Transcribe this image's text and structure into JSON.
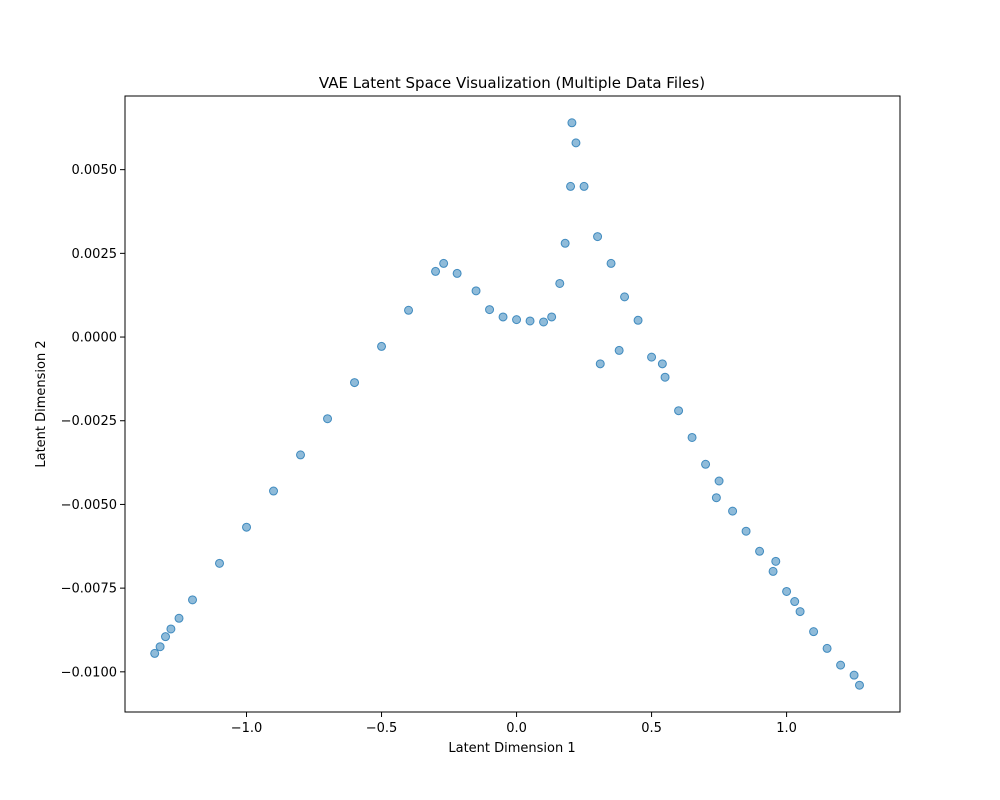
{
  "chart_data": {
    "type": "scatter",
    "title": "VAE Latent Space Visualization (Multiple Data Files)",
    "xlabel": "Latent Dimension 1",
    "ylabel": "Latent Dimension 2",
    "xlim": [
      -1.45,
      1.42
    ],
    "ylim": [
      -0.0112,
      0.0072
    ],
    "xticks": [
      -1.0,
      -0.5,
      0.0,
      0.5,
      1.0
    ],
    "xtick_labels": [
      "−1.0",
      "−0.5",
      "0.0",
      "0.5",
      "1.0"
    ],
    "yticks": [
      0.005,
      0.0025,
      0.0,
      -0.0025,
      -0.005,
      -0.0075,
      -0.01
    ],
    "ytick_labels": [
      "0.0050",
      "0.0025",
      "0.0000",
      "−0.0025",
      "−0.0050",
      "−0.0075",
      "−0.0100"
    ],
    "grid": false,
    "legend": "none",
    "marker_color": "#1f77b4",
    "marker_alpha": 0.5,
    "series": [
      {
        "points": [
          [
            -1.34,
            -0.00945
          ],
          [
            -1.32,
            -0.00925
          ],
          [
            -1.3,
            -0.00895
          ],
          [
            -1.28,
            -0.00872
          ],
          [
            -1.25,
            -0.0084
          ],
          [
            -1.2,
            -0.00785
          ],
          [
            -1.1,
            -0.00676
          ],
          [
            -1.0,
            -0.00568
          ],
          [
            -0.9,
            -0.0046
          ],
          [
            -0.8,
            -0.00352
          ],
          [
            -0.7,
            -0.00244
          ],
          [
            -0.6,
            -0.00136
          ],
          [
            -0.5,
            -0.00028
          ],
          [
            -0.4,
            0.0008
          ],
          [
            -0.3,
            0.00196
          ],
          [
            -0.27,
            0.0022
          ],
          [
            -0.22,
            0.0019
          ],
          [
            -0.15,
            0.00138
          ],
          [
            -0.1,
            0.00082
          ],
          [
            -0.05,
            0.0006
          ],
          [
            0.0,
            0.00052
          ],
          [
            0.05,
            0.00048
          ],
          [
            0.1,
            0.00045
          ],
          [
            0.13,
            0.0006
          ],
          [
            0.16,
            0.0016
          ],
          [
            0.18,
            0.0028
          ],
          [
            0.2,
            0.0045
          ],
          [
            0.205,
            0.0064
          ],
          [
            0.22,
            0.0058
          ],
          [
            0.25,
            0.0045
          ],
          [
            0.3,
            0.003
          ],
          [
            0.35,
            0.0022
          ],
          [
            0.4,
            0.0012
          ],
          [
            0.45,
            0.0005
          ],
          [
            0.5,
            -0.0006
          ],
          [
            0.55,
            -0.0012
          ],
          [
            0.6,
            -0.0022
          ],
          [
            0.65,
            -0.003
          ],
          [
            0.7,
            -0.0038
          ],
          [
            0.75,
            -0.0043
          ],
          [
            0.8,
            -0.0052
          ],
          [
            0.85,
            -0.0058
          ],
          [
            0.9,
            -0.0064
          ],
          [
            0.95,
            -0.007
          ],
          [
            1.0,
            -0.0076
          ],
          [
            1.05,
            -0.0082
          ],
          [
            1.1,
            -0.0088
          ],
          [
            1.15,
            -0.0093
          ],
          [
            1.2,
            -0.0098
          ],
          [
            1.25,
            -0.0101
          ],
          [
            1.27,
            -0.0104
          ],
          [
            0.31,
            -0.0008
          ],
          [
            0.38,
            -0.0004
          ],
          [
            0.54,
            -0.0008
          ],
          [
            0.74,
            -0.0048
          ],
          [
            0.96,
            -0.0067
          ],
          [
            1.03,
            -0.0079
          ]
        ]
      }
    ]
  }
}
